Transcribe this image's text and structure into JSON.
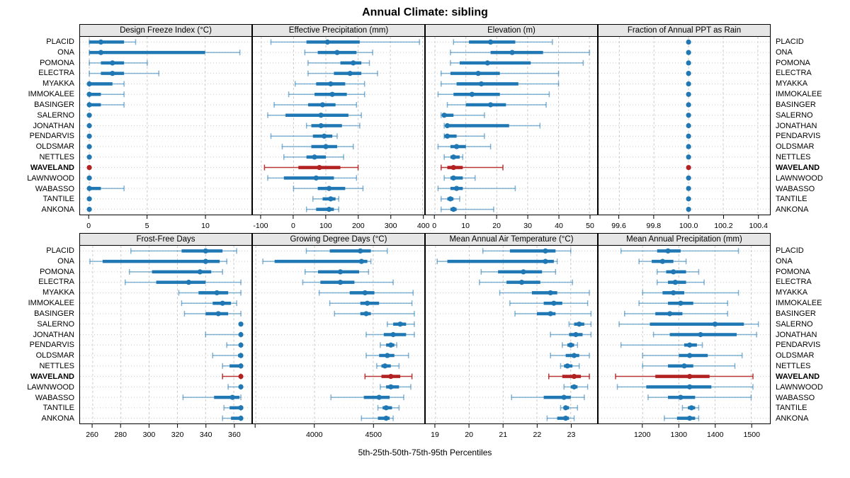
{
  "title": "Annual Climate: sibling",
  "caption": "5th-25th-50th-75th-95th Percentiles",
  "highlight_site": "WAVELAND",
  "colors": {
    "series": "#1f77b4",
    "highlight": "#b22222",
    "panel_header_bg": "#e6e6e6",
    "panel_border": "#000000",
    "gridline": "#c8c8c8",
    "row_dotted_line": "#cccccc"
  },
  "sites": [
    "PLACID",
    "ONA",
    "POMONA",
    "ELECTRA",
    "MYAKKA",
    "IMMOKALEE",
    "BASINGER",
    "SALERNO",
    "JONATHAN",
    "PENDARVIS",
    "OLDSMAR",
    "NETTLES",
    "WAVELAND",
    "LAWNWOOD",
    "WABASSO",
    "TANTILE",
    "ANKONA"
  ],
  "chart_data": {
    "type": "dotplot-intervals",
    "percentiles": [
      5,
      25,
      50,
      75,
      95
    ],
    "layout": "2 rows x 4 columns of panels, site labels on both sides, x-axes below each row",
    "panels": [
      {
        "id": "design-freeze-index",
        "row": 0,
        "title": "Design Freeze Index (°C)",
        "xlim": [
          -0.8,
          14.0
        ],
        "ticks": [
          0,
          5,
          10
        ],
        "tick_labels": [
          "0",
          "5",
          "10"
        ],
        "values": [
          [
            0,
            0,
            1,
            3,
            4
          ],
          [
            0,
            0,
            1,
            10,
            13
          ],
          [
            0,
            1,
            2,
            3,
            5
          ],
          [
            0,
            1,
            2,
            3,
            6
          ],
          [
            0,
            0,
            0,
            2,
            3
          ],
          [
            0,
            0,
            0,
            1,
            3
          ],
          [
            0,
            0,
            0,
            1,
            3
          ],
          [
            0,
            0,
            0,
            0,
            0
          ],
          [
            0,
            0,
            0,
            0,
            0
          ],
          [
            0,
            0,
            0,
            0,
            0
          ],
          [
            0,
            0,
            0,
            0,
            0
          ],
          [
            0,
            0,
            0,
            0,
            0
          ],
          [
            0,
            0,
            0,
            0,
            0
          ],
          [
            0,
            0,
            0,
            0,
            0
          ],
          [
            0,
            0,
            0,
            1,
            3
          ],
          [
            0,
            0,
            0,
            0,
            0
          ],
          [
            0,
            0,
            0,
            0,
            0
          ]
        ]
      },
      {
        "id": "effective-precipitation",
        "row": 0,
        "title": "Effective Precipitation (mm)",
        "xlim": [
          -126,
          405
        ],
        "ticks": [
          -100,
          0,
          100,
          200,
          300,
          400
        ],
        "tick_labels": [
          "-100",
          "0",
          "100",
          "200",
          "300",
          "400"
        ],
        "values": [
          [
            -70,
            40,
            105,
            205,
            390
          ],
          [
            35,
            75,
            135,
            195,
            245
          ],
          [
            45,
            145,
            185,
            210,
            235
          ],
          [
            45,
            125,
            175,
            210,
            260
          ],
          [
            5,
            70,
            115,
            160,
            220
          ],
          [
            -15,
            65,
            120,
            165,
            220
          ],
          [
            -60,
            45,
            90,
            130,
            195
          ],
          [
            -80,
            -25,
            85,
            170,
            210
          ],
          [
            40,
            55,
            85,
            150,
            205
          ],
          [
            -70,
            60,
            95,
            120,
            135
          ],
          [
            -35,
            55,
            100,
            135,
            185
          ],
          [
            -30,
            40,
            65,
            100,
            155
          ],
          [
            -90,
            15,
            80,
            145,
            200
          ],
          [
            -80,
            -30,
            70,
            125,
            195
          ],
          [
            0,
            75,
            110,
            160,
            215
          ],
          [
            60,
            90,
            115,
            130,
            140
          ],
          [
            40,
            70,
            110,
            125,
            140
          ]
        ]
      },
      {
        "id": "elevation",
        "row": 0,
        "title": "Elevation (m)",
        "xlim": [
          -3,
          52.5
        ],
        "ticks": [
          0,
          10,
          20,
          30,
          40,
          50
        ],
        "tick_labels": [
          "0",
          "10",
          "20",
          "30",
          "40",
          "50"
        ],
        "values": [
          [
            6,
            11,
            18,
            26,
            38
          ],
          [
            5,
            18,
            25,
            35,
            50
          ],
          [
            5,
            8,
            17,
            31,
            48
          ],
          [
            2,
            5,
            14,
            21,
            40
          ],
          [
            2,
            7,
            15,
            27,
            40
          ],
          [
            1,
            6,
            12,
            21,
            37
          ],
          [
            4,
            10,
            18,
            23,
            36
          ],
          [
            2,
            3,
            3,
            6,
            16
          ],
          [
            3,
            4,
            4,
            24,
            34
          ],
          [
            3,
            3,
            4,
            7,
            16
          ],
          [
            1,
            5,
            7,
            10,
            18
          ],
          [
            3,
            5,
            6,
            8,
            9
          ],
          [
            2,
            4,
            6,
            9,
            22
          ],
          [
            3,
            5,
            6,
            9,
            13
          ],
          [
            1,
            5,
            7,
            9,
            26
          ],
          [
            2,
            4,
            5,
            6,
            8
          ],
          [
            2,
            5,
            6,
            7,
            19
          ]
        ]
      },
      {
        "id": "fraction-annual-ppt-rain",
        "row": 0,
        "title": "Fraction of Annual PPT as Rain",
        "xlim": [
          99.48,
          100.47
        ],
        "ticks": [
          99.6,
          99.8,
          100.0,
          100.2,
          100.4
        ],
        "tick_labels": [
          "99.6",
          "99.8",
          "100.0",
          "100.2",
          "100.4"
        ],
        "values": [
          [
            100,
            100,
            100,
            100,
            100
          ],
          [
            100,
            100,
            100,
            100,
            100
          ],
          [
            100,
            100,
            100,
            100,
            100
          ],
          [
            100,
            100,
            100,
            100,
            100
          ],
          [
            100,
            100,
            100,
            100,
            100
          ],
          [
            100,
            100,
            100,
            100,
            100
          ],
          [
            100,
            100,
            100,
            100,
            100
          ],
          [
            100,
            100,
            100,
            100,
            100
          ],
          [
            100,
            100,
            100,
            100,
            100
          ],
          [
            100,
            100,
            100,
            100,
            100
          ],
          [
            100,
            100,
            100,
            100,
            100
          ],
          [
            100,
            100,
            100,
            100,
            100
          ],
          [
            100,
            100,
            100,
            100,
            100
          ],
          [
            100,
            100,
            100,
            100,
            100
          ],
          [
            100,
            100,
            100,
            100,
            100
          ],
          [
            100,
            100,
            100,
            100,
            100
          ],
          [
            100,
            100,
            100,
            100,
            100
          ]
        ]
      },
      {
        "id": "frost-free-days",
        "row": 1,
        "title": "Frost-Free Days",
        "xlim": [
          251,
          372.5
        ],
        "ticks": [
          260,
          280,
          300,
          320,
          340,
          360
        ],
        "tick_labels": [
          "260",
          "280",
          "300",
          "320",
          "340",
          "360"
        ],
        "values": [
          [
            287,
            323,
            340,
            352,
            362
          ],
          [
            258,
            267,
            340,
            350,
            355
          ],
          [
            286,
            302,
            336,
            344,
            352
          ],
          [
            283,
            305,
            328,
            340,
            365
          ],
          [
            321,
            335,
            348,
            356,
            365
          ],
          [
            323,
            345,
            352,
            358,
            362
          ],
          [
            325,
            340,
            349,
            356,
            365
          ],
          [
            365,
            365,
            365,
            365,
            365
          ],
          [
            340,
            364,
            365,
            365,
            365
          ],
          [
            355,
            364,
            365,
            365,
            365
          ],
          [
            345,
            363,
            365,
            365,
            365
          ],
          [
            352,
            357,
            365,
            365,
            365
          ],
          [
            352,
            365,
            365,
            365,
            365
          ],
          [
            356,
            364,
            365,
            365,
            365
          ],
          [
            324,
            346,
            359,
            364,
            365
          ],
          [
            353,
            357,
            365,
            365,
            365
          ],
          [
            352,
            358,
            365,
            365,
            365
          ]
        ]
      },
      {
        "id": "growing-degree-days",
        "row": 1,
        "title": "Growing Degree Days (°C)",
        "xlim": [
          3475,
          4935
        ],
        "ticks": [
          3500,
          4000,
          4500
        ],
        "tick_labels": [
          "",
          "4000",
          "4500"
        ],
        "values": [
          [
            3930,
            4130,
            4390,
            4480,
            4620
          ],
          [
            3560,
            3660,
            4400,
            4450,
            4480
          ],
          [
            3920,
            4030,
            4220,
            4380,
            4460
          ],
          [
            3900,
            4050,
            4220,
            4340,
            4670
          ],
          [
            4040,
            4300,
            4430,
            4510,
            4840
          ],
          [
            4130,
            4390,
            4450,
            4550,
            4830
          ],
          [
            4170,
            4390,
            4440,
            4480,
            4850
          ],
          [
            4620,
            4670,
            4730,
            4780,
            4850
          ],
          [
            4440,
            4590,
            4670,
            4780,
            4850
          ],
          [
            4560,
            4610,
            4650,
            4680,
            4700
          ],
          [
            4440,
            4550,
            4620,
            4680,
            4800
          ],
          [
            4530,
            4570,
            4600,
            4650,
            4720
          ],
          [
            4430,
            4570,
            4650,
            4730,
            4830
          ],
          [
            4560,
            4610,
            4650,
            4720,
            4820
          ],
          [
            4140,
            4420,
            4550,
            4640,
            4760
          ],
          [
            4540,
            4580,
            4610,
            4660,
            4720
          ],
          [
            4400,
            4540,
            4610,
            4640,
            4670
          ]
        ]
      },
      {
        "id": "mean-annual-air-temperature",
        "row": 1,
        "title": "Mean Annual Air Temperature (°C)",
        "xlim": [
          18.71,
          23.78
        ],
        "ticks": [
          19,
          20,
          21,
          22,
          23
        ],
        "tick_labels": [
          "19",
          "20",
          "21",
          "22",
          "23"
        ],
        "values": [
          [
            20.4,
            21.2,
            22.25,
            22.55,
            23.0
          ],
          [
            19.05,
            19.35,
            22.25,
            22.5,
            22.6
          ],
          [
            20.35,
            20.85,
            21.6,
            22.15,
            22.55
          ],
          [
            20.3,
            21.1,
            21.55,
            22.1,
            23.05
          ],
          [
            20.9,
            21.85,
            22.4,
            22.6,
            23.55
          ],
          [
            21.2,
            22.2,
            22.5,
            22.75,
            23.5
          ],
          [
            21.35,
            22.0,
            22.4,
            22.55,
            23.6
          ],
          [
            22.95,
            23.1,
            23.25,
            23.4,
            23.6
          ],
          [
            22.4,
            22.95,
            23.15,
            23.35,
            23.6
          ],
          [
            22.75,
            22.9,
            23.0,
            23.1,
            23.2
          ],
          [
            22.4,
            22.85,
            23.1,
            23.25,
            23.55
          ],
          [
            22.7,
            22.8,
            22.9,
            23.05,
            23.25
          ],
          [
            22.35,
            22.75,
            23.1,
            23.3,
            23.55
          ],
          [
            22.8,
            23.0,
            23.1,
            23.2,
            23.5
          ],
          [
            21.25,
            22.2,
            22.8,
            23.0,
            23.4
          ],
          [
            22.7,
            22.8,
            22.85,
            22.95,
            23.2
          ],
          [
            22.3,
            22.6,
            22.85,
            22.95,
            23.1
          ]
        ]
      },
      {
        "id": "mean-annual-precipitation",
        "row": 1,
        "title": "Mean Annual Precipitation (mm)",
        "xlim": [
          1078,
          1552
        ],
        "ticks": [
          1200,
          1300,
          1400,
          1500
        ],
        "tick_labels": [
          "1200",
          "1300",
          "1400",
          "1500"
        ],
        "values": [
          [
            1140,
            1240,
            1270,
            1305,
            1465
          ],
          [
            1190,
            1225,
            1255,
            1285,
            1320
          ],
          [
            1240,
            1265,
            1285,
            1320,
            1355
          ],
          [
            1240,
            1270,
            1290,
            1320,
            1370
          ],
          [
            1200,
            1255,
            1285,
            1315,
            1465
          ],
          [
            1190,
            1270,
            1305,
            1340,
            1435
          ],
          [
            1150,
            1235,
            1275,
            1310,
            1435
          ],
          [
            1135,
            1220,
            1400,
            1480,
            1520
          ],
          [
            1230,
            1275,
            1360,
            1460,
            1515
          ],
          [
            1140,
            1315,
            1330,
            1350,
            1365
          ],
          [
            1200,
            1300,
            1330,
            1380,
            1475
          ],
          [
            1200,
            1270,
            1315,
            1340,
            1455
          ],
          [
            1125,
            1235,
            1330,
            1385,
            1505
          ],
          [
            1130,
            1210,
            1330,
            1390,
            1505
          ],
          [
            1215,
            1270,
            1305,
            1345,
            1500
          ],
          [
            1310,
            1325,
            1335,
            1345,
            1355
          ],
          [
            1260,
            1295,
            1330,
            1345,
            1355
          ]
        ]
      }
    ]
  }
}
